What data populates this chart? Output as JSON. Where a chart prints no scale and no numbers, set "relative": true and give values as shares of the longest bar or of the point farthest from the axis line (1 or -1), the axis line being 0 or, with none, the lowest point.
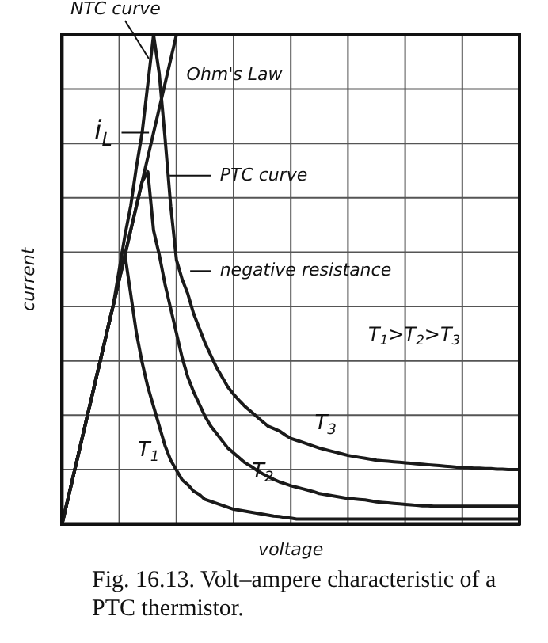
{
  "chart_data": {
    "type": "line",
    "relative": true,
    "xlabel": "voltage",
    "ylabel": "current",
    "categories": [
      null,
      null,
      null,
      null,
      null,
      null,
      null,
      null,
      null,
      null,
      null,
      null,
      null,
      null,
      null,
      null,
      null,
      null,
      null,
      null,
      null,
      null,
      null,
      null,
      null,
      null,
      null,
      null,
      null,
      null,
      null,
      null,
      null,
      null,
      null,
      null,
      null,
      null,
      null,
      null,
      null,
      null,
      null,
      null,
      null,
      null,
      null,
      null,
      null,
      null,
      null,
      null,
      null,
      null,
      null,
      null,
      null,
      null,
      null,
      null,
      null,
      null,
      null,
      null,
      null,
      null,
      null,
      null,
      null,
      null,
      null,
      null,
      null,
      null,
      null,
      null,
      null,
      null,
      null,
      null,
      null
    ],
    "grid": true,
    "legend": false,
    "marker": "none",
    "line_style": "solid",
    "series": [
      {
        "name": "NTC curve",
        "color": "#1a1a1a",
        "values": [
          0,
          0.05,
          0.1,
          0.15,
          0.2,
          0.25,
          0.3,
          0.35,
          0.4,
          0.45,
          0.52,
          0.59,
          0.65,
          0.73,
          0.8,
          0.9,
          1.0,
          null,
          null,
          null,
          null,
          null,
          null,
          null,
          null,
          null,
          null,
          null,
          null,
          null,
          null,
          null,
          null,
          null,
          null,
          null,
          null,
          null,
          null,
          null,
          null,
          null,
          null,
          null,
          null,
          null,
          null,
          null,
          null,
          null,
          null,
          null,
          null,
          null,
          null,
          null,
          null,
          null,
          null,
          null,
          null,
          null,
          null,
          null,
          null,
          null,
          null,
          null,
          null,
          null,
          null,
          null,
          null,
          null,
          null,
          null,
          null,
          null,
          null,
          null,
          null
        ]
      },
      {
        "name": "Ohm's Law",
        "color": "#1a1a1a",
        "values": [
          0,
          0.05,
          0.1,
          0.15,
          0.2,
          0.25,
          0.3,
          0.35,
          0.4,
          0.45,
          0.5,
          0.55,
          0.6,
          0.65,
          0.7,
          0.75,
          0.8,
          0.85,
          0.9,
          0.95,
          1.0,
          null,
          null,
          null,
          null,
          null,
          null,
          null,
          null,
          null,
          null,
          null,
          null,
          null,
          null,
          null,
          null,
          null,
          null,
          null,
          null,
          null,
          null,
          null,
          null,
          null,
          null,
          null,
          null,
          null,
          null,
          null,
          null,
          null,
          null,
          null,
          null,
          null,
          null,
          null,
          null,
          null,
          null,
          null,
          null,
          null,
          null,
          null,
          null,
          null,
          null,
          null,
          null,
          null,
          null,
          null,
          null,
          null,
          null,
          null,
          null
        ]
      },
      {
        "name": "T$_{1}$",
        "color": "#1a1a1a",
        "values": [
          0,
          0.05,
          0.1,
          0.15,
          0.2,
          0.25,
          0.3,
          0.35,
          0.4,
          0.45,
          0.5,
          0.55,
          0.47,
          0.39,
          0.33,
          0.28,
          0.24,
          0.2,
          0.16,
          0.13,
          0.11,
          0.09,
          0.08,
          0.067,
          0.06,
          0.05,
          0.046,
          0.042,
          0.038,
          0.034,
          0.03,
          0.028,
          0.026,
          0.024,
          0.022,
          0.02,
          0.018,
          0.016,
          0.015,
          0.013,
          0.012,
          0.01,
          0.01,
          0.01,
          0.01,
          0.01,
          0.01,
          0.01,
          0.01,
          0.01,
          0.01,
          0.01,
          0.01,
          0.01,
          0.01,
          0.01,
          0.01,
          0.01,
          0.01,
          0.01,
          0.01,
          0.01,
          0.01,
          0.01,
          0.01,
          0.01,
          0.01,
          0.01,
          0.01,
          0.01,
          0.01,
          0.01,
          0.01,
          0.01,
          0.01,
          0.01,
          0.01,
          0.01,
          0.01,
          0.01,
          0.01
        ]
      },
      {
        "name": "T$_{2}$",
        "color": "#1a1a1a",
        "values": [
          0,
          0.05,
          0.1,
          0.15,
          0.2,
          0.25,
          0.3,
          0.35,
          0.4,
          0.45,
          0.5,
          0.55,
          0.6,
          0.65,
          0.7,
          0.72,
          0.6,
          0.55,
          0.49,
          0.44,
          0.39,
          0.34,
          0.3,
          0.27,
          0.245,
          0.22,
          0.2,
          0.185,
          0.17,
          0.155,
          0.145,
          0.135,
          0.125,
          0.118,
          0.11,
          0.103,
          0.097,
          0.091,
          0.086,
          0.082,
          0.078,
          0.075,
          0.072,
          0.069,
          0.066,
          0.062,
          0.06,
          0.058,
          0.056,
          0.054,
          0.052,
          0.051,
          0.05,
          0.049,
          0.047,
          0.045,
          0.044,
          0.043,
          0.042,
          0.041,
          0.04,
          0.039,
          0.038,
          0.037,
          0.037,
          0.036,
          0.036,
          0.036,
          0.036,
          0.036,
          0.036,
          0.036,
          0.036,
          0.036,
          0.036,
          0.036,
          0.036,
          0.036,
          0.036,
          0.036,
          0.036
        ]
      },
      {
        "name": "T$_{3}$",
        "color": "#1a1a1a",
        "values": [
          null,
          null,
          null,
          null,
          null,
          null,
          null,
          null,
          null,
          null,
          null,
          null,
          null,
          null,
          null,
          null,
          1.0,
          0.92,
          0.79,
          0.65,
          0.54,
          0.5,
          0.47,
          0.43,
          0.4,
          0.37,
          0.345,
          0.32,
          0.3,
          0.28,
          0.265,
          0.252,
          0.24,
          0.23,
          0.22,
          0.21,
          0.2,
          0.195,
          0.19,
          0.182,
          0.175,
          0.171,
          0.167,
          0.163,
          0.159,
          0.155,
          0.152,
          0.149,
          0.146,
          0.143,
          0.14,
          0.138,
          0.136,
          0.134,
          0.132,
          0.13,
          0.129,
          0.128,
          0.127,
          0.126,
          0.125,
          0.124,
          0.123,
          0.122,
          0.121,
          0.12,
          0.119,
          0.118,
          0.117,
          0.116,
          0.115,
          0.115,
          0.114,
          0.114,
          0.113,
          0.113,
          0.112,
          0.112,
          0.111,
          0.111,
          0.111
        ]
      }
    ],
    "annotations": [
      "T$_{1}$>T$_{2}$>T$_{3}$",
      "i$_{L}$",
      "PTC curve",
      "negative resistance",
      "Fig. 16.13. Volt–ampere characteristic of a PTC thermistor."
    ]
  }
}
